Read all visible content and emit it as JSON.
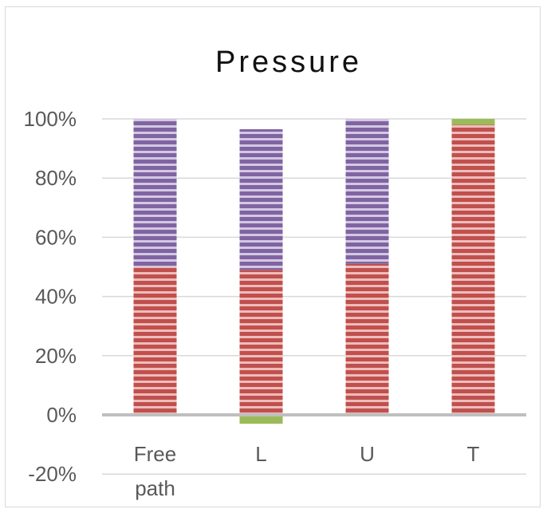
{
  "chart_data": {
    "type": "bar",
    "stacked": true,
    "title": "Pressure",
    "xlabel": "",
    "ylabel": "",
    "ylim": [
      -0.2,
      1.0
    ],
    "yticks": [
      -0.2,
      0,
      0.2,
      0.4,
      0.6,
      0.8,
      1.0
    ],
    "ytick_labels": [
      "-20%",
      "0%",
      "20%",
      "40%",
      "60%",
      "80%",
      "100%"
    ],
    "grid": true,
    "legend": "none",
    "categories": [
      "Free path",
      "L",
      "U",
      "T"
    ],
    "series": [
      {
        "color": "#c0504d",
        "values": [
          0.5,
          0.49,
          0.51,
          0.98
        ]
      },
      {
        "color": "#8064a2",
        "values": [
          0.5,
          0.475,
          0.49,
          0.0
        ]
      },
      {
        "color": "#9bbb59",
        "values": [
          0.0,
          -0.03,
          0.0,
          0.02
        ]
      }
    ]
  }
}
